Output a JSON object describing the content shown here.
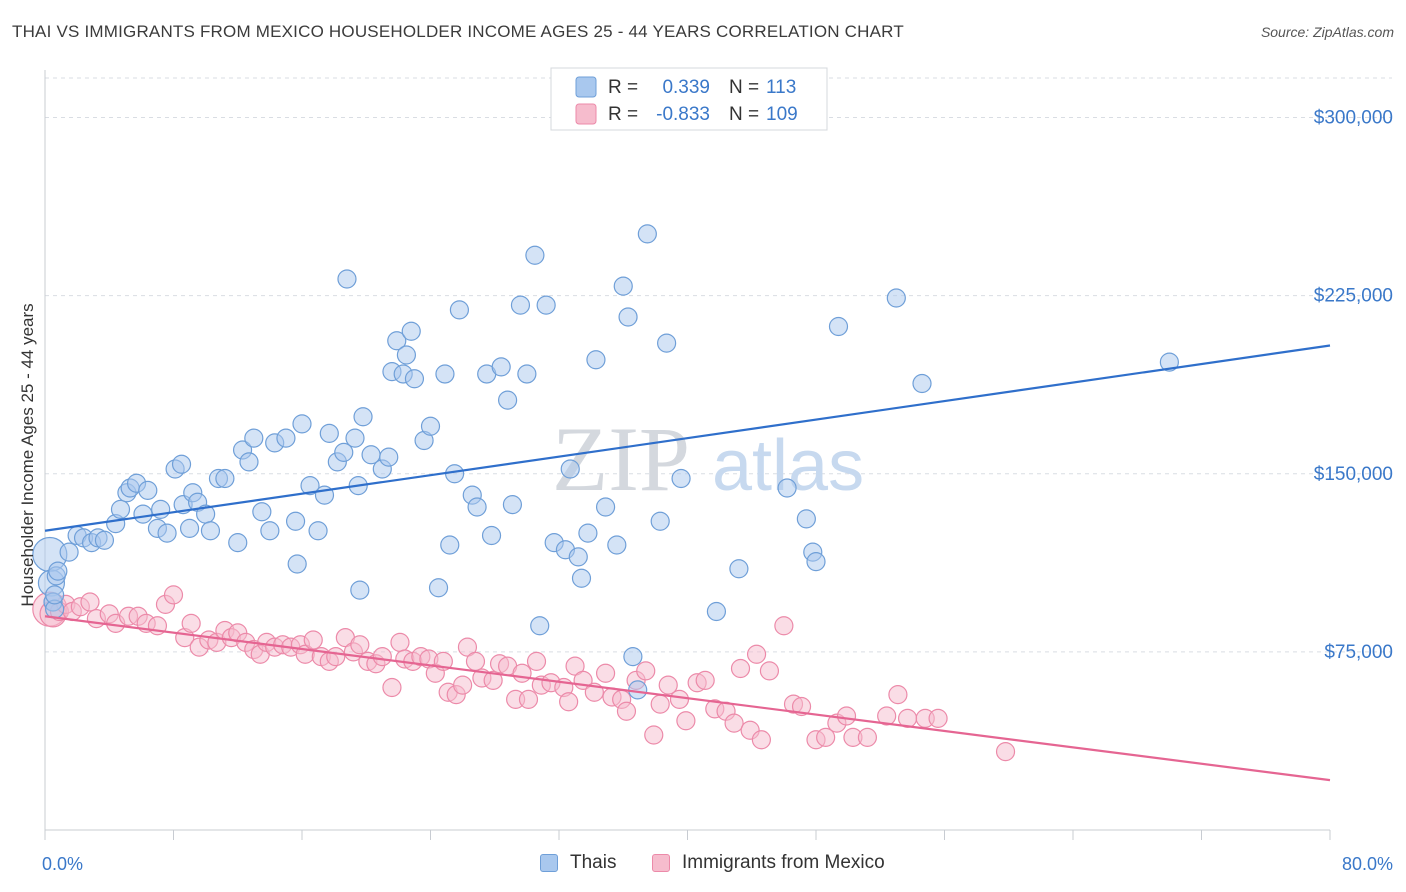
{
  "title": "THAI VS IMMIGRANTS FROM MEXICO HOUSEHOLDER INCOME AGES 25 - 44 YEARS CORRELATION CHART",
  "source": "Source: ZipAtlas.com",
  "watermark": {
    "zip": "ZIP",
    "atlas": "atlas"
  },
  "colors": {
    "thai_fill": "#a9c8ee",
    "thai_stroke": "#6f9fd8",
    "thai_line": "#2f6fcb",
    "mex_fill": "#f6bccd",
    "mex_stroke": "#ec8aa9",
    "mex_line": "#e56592",
    "axis_text_blue": "#3a78c9",
    "grid": "#d9dde3"
  },
  "legend": {
    "thai": {
      "r_label": "R =",
      "r_value": "0.339",
      "n_label": "N =",
      "n_value": "113"
    },
    "mex": {
      "r_label": "R =",
      "r_value": "-0.833",
      "n_label": "N =",
      "n_value": "109"
    }
  },
  "bottom_legend": {
    "thai": "Thais",
    "mex": "Immigrants from Mexico"
  },
  "chart_data": {
    "type": "scatter",
    "title": "THAI VS IMMIGRANTS FROM MEXICO HOUSEHOLDER INCOME AGES 25 - 44 YEARS CORRELATION CHART",
    "xlabel": "",
    "ylabel": "Householder Income Ages 25 - 44 years",
    "xlim": [
      0,
      80
    ],
    "ylim": [
      0,
      320000
    ],
    "x_tick_labels": [
      "0.0%",
      "80.0%"
    ],
    "y_ticks": [
      75000,
      150000,
      225000,
      300000
    ],
    "y_tick_labels": [
      "$75,000",
      "$150,000",
      "$225,000",
      "$300,000"
    ],
    "grid": "horizontal dashed",
    "legend_position": "top-center",
    "series": [
      {
        "name": "Thais",
        "r": 0.339,
        "n": 113,
        "trend": {
          "x": [
            0,
            80
          ],
          "y": [
            126000,
            204000
          ]
        },
        "points": [
          [
            0.3,
            116000
          ],
          [
            0.4,
            104000
          ],
          [
            0.5,
            96000
          ],
          [
            0.5,
            96000
          ],
          [
            0.6,
            93000
          ],
          [
            0.6,
            99000
          ],
          [
            0.7,
            107000
          ],
          [
            0.8,
            109000
          ],
          [
            1.5,
            117000
          ],
          [
            2.0,
            124000
          ],
          [
            2.4,
            123000
          ],
          [
            2.9,
            121000
          ],
          [
            3.3,
            123000
          ],
          [
            3.7,
            122000
          ],
          [
            4.4,
            129000
          ],
          [
            4.7,
            135000
          ],
          [
            5.1,
            142000
          ],
          [
            5.3,
            144000
          ],
          [
            5.7,
            146000
          ],
          [
            6.1,
            133000
          ],
          [
            6.4,
            143000
          ],
          [
            7.0,
            127000
          ],
          [
            7.2,
            135000
          ],
          [
            7.6,
            125000
          ],
          [
            8.1,
            152000
          ],
          [
            8.5,
            154000
          ],
          [
            8.6,
            137000
          ],
          [
            9.0,
            127000
          ],
          [
            9.2,
            142000
          ],
          [
            9.5,
            138000
          ],
          [
            10.0,
            133000
          ],
          [
            10.3,
            126000
          ],
          [
            10.8,
            148000
          ],
          [
            11.2,
            148000
          ],
          [
            12.0,
            121000
          ],
          [
            12.3,
            160000
          ],
          [
            12.7,
            155000
          ],
          [
            13.0,
            165000
          ],
          [
            13.5,
            134000
          ],
          [
            14.0,
            126000
          ],
          [
            14.3,
            163000
          ],
          [
            15.0,
            165000
          ],
          [
            15.6,
            130000
          ],
          [
            15.7,
            112000
          ],
          [
            16.0,
            171000
          ],
          [
            16.5,
            145000
          ],
          [
            17.0,
            126000
          ],
          [
            17.4,
            141000
          ],
          [
            17.7,
            167000
          ],
          [
            18.2,
            155000
          ],
          [
            18.6,
            159000
          ],
          [
            18.8,
            232000
          ],
          [
            19.3,
            165000
          ],
          [
            19.5,
            145000
          ],
          [
            19.6,
            101000
          ],
          [
            19.8,
            174000
          ],
          [
            20.3,
            158000
          ],
          [
            21.0,
            152000
          ],
          [
            21.4,
            157000
          ],
          [
            21.6,
            193000
          ],
          [
            21.9,
            206000
          ],
          [
            22.3,
            192000
          ],
          [
            22.5,
            200000
          ],
          [
            22.8,
            210000
          ],
          [
            23.0,
            190000
          ],
          [
            23.6,
            164000
          ],
          [
            24.0,
            170000
          ],
          [
            24.5,
            102000
          ],
          [
            24.9,
            192000
          ],
          [
            25.2,
            120000
          ],
          [
            25.5,
            150000
          ],
          [
            25.8,
            219000
          ],
          [
            26.6,
            141000
          ],
          [
            26.9,
            136000
          ],
          [
            27.5,
            192000
          ],
          [
            27.8,
            124000
          ],
          [
            28.4,
            195000
          ],
          [
            28.8,
            181000
          ],
          [
            29.1,
            137000
          ],
          [
            29.6,
            221000
          ],
          [
            30.0,
            192000
          ],
          [
            30.5,
            242000
          ],
          [
            30.8,
            86000
          ],
          [
            31.2,
            221000
          ],
          [
            31.7,
            121000
          ],
          [
            32.4,
            118000
          ],
          [
            32.7,
            152000
          ],
          [
            33.2,
            115000
          ],
          [
            33.4,
            106000
          ],
          [
            33.8,
            125000
          ],
          [
            34.3,
            198000
          ],
          [
            34.9,
            136000
          ],
          [
            35.6,
            120000
          ],
          [
            36.0,
            229000
          ],
          [
            36.3,
            216000
          ],
          [
            36.6,
            73000
          ],
          [
            36.9,
            59000
          ],
          [
            37.5,
            251000
          ],
          [
            38.3,
            130000
          ],
          [
            38.7,
            205000
          ],
          [
            39.6,
            148000
          ],
          [
            41.8,
            92000
          ],
          [
            43.2,
            110000
          ],
          [
            46.2,
            144000
          ],
          [
            47.4,
            131000
          ],
          [
            47.8,
            117000
          ],
          [
            48.0,
            113000
          ],
          [
            49.4,
            212000
          ],
          [
            53.0,
            224000
          ],
          [
            54.6,
            188000
          ],
          [
            70.0,
            197000
          ]
        ]
      },
      {
        "name": "Immigrants from Mexico",
        "r": -0.833,
        "n": 109,
        "trend": {
          "x": [
            0,
            80
          ],
          "y": [
            90000,
            21000
          ]
        },
        "points": [
          [
            0.3,
            93000
          ],
          [
            0.5,
            91000
          ],
          [
            0.9,
            92000
          ],
          [
            1.3,
            95000
          ],
          [
            1.7,
            92000
          ],
          [
            2.2,
            94000
          ],
          [
            2.8,
            96000
          ],
          [
            3.2,
            89000
          ],
          [
            4.0,
            91000
          ],
          [
            4.4,
            87000
          ],
          [
            5.2,
            90000
          ],
          [
            5.8,
            90000
          ],
          [
            6.3,
            87000
          ],
          [
            7.0,
            86000
          ],
          [
            7.5,
            95000
          ],
          [
            8.0,
            99000
          ],
          [
            8.7,
            81000
          ],
          [
            9.1,
            87000
          ],
          [
            9.6,
            77000
          ],
          [
            10.2,
            80000
          ],
          [
            10.7,
            79000
          ],
          [
            11.2,
            84000
          ],
          [
            11.6,
            81000
          ],
          [
            12.0,
            83000
          ],
          [
            12.5,
            79000
          ],
          [
            13.0,
            76000
          ],
          [
            13.4,
            74000
          ],
          [
            13.8,
            79000
          ],
          [
            14.3,
            77000
          ],
          [
            14.8,
            78000
          ],
          [
            15.3,
            77000
          ],
          [
            15.9,
            78000
          ],
          [
            16.2,
            74000
          ],
          [
            16.7,
            80000
          ],
          [
            17.2,
            73000
          ],
          [
            17.7,
            71000
          ],
          [
            18.1,
            73000
          ],
          [
            18.7,
            81000
          ],
          [
            19.2,
            75000
          ],
          [
            19.6,
            78000
          ],
          [
            20.1,
            71000
          ],
          [
            20.6,
            70000
          ],
          [
            21.0,
            73000
          ],
          [
            21.6,
            60000
          ],
          [
            22.1,
            79000
          ],
          [
            22.4,
            72000
          ],
          [
            22.9,
            71000
          ],
          [
            23.4,
            73000
          ],
          [
            23.9,
            72000
          ],
          [
            24.3,
            66000
          ],
          [
            24.8,
            71000
          ],
          [
            25.1,
            58000
          ],
          [
            25.6,
            57000
          ],
          [
            26.0,
            61000
          ],
          [
            26.3,
            77000
          ],
          [
            26.8,
            71000
          ],
          [
            27.2,
            64000
          ],
          [
            27.9,
            63000
          ],
          [
            28.3,
            70000
          ],
          [
            28.8,
            69000
          ],
          [
            29.3,
            55000
          ],
          [
            29.7,
            66000
          ],
          [
            30.1,
            55000
          ],
          [
            30.6,
            71000
          ],
          [
            30.9,
            61000
          ],
          [
            31.5,
            62000
          ],
          [
            32.3,
            60000
          ],
          [
            32.6,
            54000
          ],
          [
            33.0,
            69000
          ],
          [
            33.5,
            63000
          ],
          [
            34.2,
            58000
          ],
          [
            34.9,
            66000
          ],
          [
            35.3,
            56000
          ],
          [
            35.9,
            55000
          ],
          [
            36.2,
            50000
          ],
          [
            36.8,
            63000
          ],
          [
            37.4,
            67000
          ],
          [
            37.9,
            40000
          ],
          [
            38.3,
            53000
          ],
          [
            38.8,
            61000
          ],
          [
            39.5,
            55000
          ],
          [
            39.9,
            46000
          ],
          [
            40.6,
            62000
          ],
          [
            41.1,
            63000
          ],
          [
            41.7,
            51000
          ],
          [
            42.4,
            50000
          ],
          [
            42.9,
            45000
          ],
          [
            43.3,
            68000
          ],
          [
            43.9,
            42000
          ],
          [
            44.3,
            74000
          ],
          [
            44.6,
            38000
          ],
          [
            45.1,
            67000
          ],
          [
            46.0,
            86000
          ],
          [
            46.6,
            53000
          ],
          [
            47.1,
            52000
          ],
          [
            48.0,
            38000
          ],
          [
            48.6,
            39000
          ],
          [
            49.3,
            45000
          ],
          [
            49.9,
            48000
          ],
          [
            50.3,
            39000
          ],
          [
            51.2,
            39000
          ],
          [
            52.4,
            48000
          ],
          [
            53.1,
            57000
          ],
          [
            53.7,
            47000
          ],
          [
            54.8,
            47000
          ],
          [
            55.6,
            47000
          ],
          [
            59.8,
            33000
          ]
        ]
      }
    ]
  }
}
